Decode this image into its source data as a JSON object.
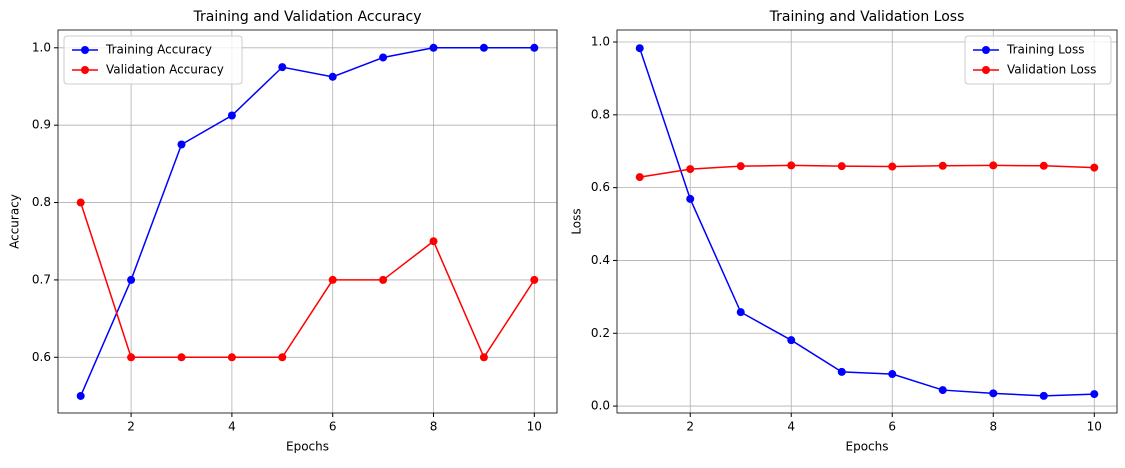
{
  "chart_data": [
    {
      "type": "line",
      "title": "Training and Validation Accuracy",
      "x_label": "Epochs",
      "y_label": "Accuracy",
      "x": [
        1,
        2,
        3,
        4,
        5,
        6,
        7,
        8,
        9,
        10
      ],
      "series": [
        {
          "name": "Training Accuracy",
          "color": "#0000ff",
          "values": [
            0.55,
            0.7,
            0.875,
            0.9125,
            0.975,
            0.9625,
            0.9875,
            1.0,
            1.0,
            1.0
          ]
        },
        {
          "name": "Validation Accuracy",
          "color": "#ff0000",
          "values": [
            0.8,
            0.6,
            0.6,
            0.6,
            0.6,
            0.7,
            0.7,
            0.75,
            0.6,
            0.7
          ]
        }
      ],
      "xlim": [
        0.55,
        10.45
      ],
      "xticks": [
        2,
        4,
        6,
        8,
        10
      ],
      "ylim": [
        0.528,
        1.023
      ],
      "yticks": [
        0.6,
        0.7,
        0.8,
        0.9,
        {
          "value": 1,
          "label": "1.0"
        }
      ],
      "grid": true,
      "legend": "upper left"
    },
    {
      "type": "line",
      "title": "Training and Validation Loss",
      "x_label": "Epochs",
      "y_label": "Loss",
      "x": [
        1,
        2,
        3,
        4,
        5,
        6,
        7,
        8,
        9,
        10
      ],
      "series": [
        {
          "name": "Training Loss",
          "color": "#0000ff",
          "values": [
            0.983,
            0.569,
            0.258,
            0.181,
            0.094,
            0.088,
            0.044,
            0.035,
            0.028,
            0.033
          ]
        },
        {
          "name": "Validation Loss",
          "color": "#ff0000",
          "values": [
            0.629,
            0.651,
            0.659,
            0.661,
            0.659,
            0.658,
            0.66,
            0.661,
            0.66,
            0.655
          ]
        }
      ],
      "xlim": [
        0.55,
        10.45
      ],
      "xticks": [
        2,
        4,
        6,
        8,
        10
      ],
      "ylim": [
        -0.019,
        1.033
      ],
      "yticks": [
        {
          "value": 0,
          "label": "0.0"
        },
        0.2,
        0.4,
        0.6,
        0.8,
        {
          "value": 1,
          "label": "1.0"
        }
      ],
      "grid": true,
      "legend": "upper right"
    }
  ]
}
